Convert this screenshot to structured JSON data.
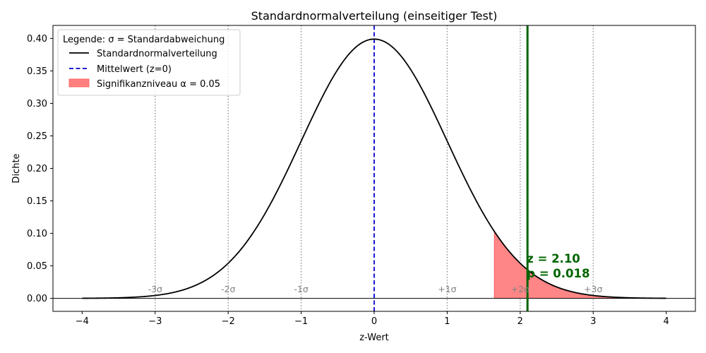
{
  "chart_data": {
    "type": "line",
    "title": "Standardnormalverteilung (einseitiger Test)",
    "xlabel": "z-Wert",
    "ylabel": "Dichte",
    "xlim": [
      -4.4,
      4.4
    ],
    "ylim": [
      -0.02,
      0.42
    ],
    "x_ticks": [
      -4,
      -3,
      -2,
      -1,
      0,
      1,
      2,
      3,
      4
    ],
    "x_tick_labels": [
      "−4",
      "−3",
      "−2",
      "−1",
      "0",
      "1",
      "2",
      "3",
      "4"
    ],
    "y_ticks": [
      0.0,
      0.05,
      0.1,
      0.15,
      0.2,
      0.25,
      0.3,
      0.35,
      0.4
    ],
    "y_tick_labels": [
      "0.00",
      "0.05",
      "0.10",
      "0.15",
      "0.20",
      "0.25",
      "0.30",
      "0.35",
      "0.40"
    ],
    "grid": false,
    "curve": {
      "name": "Standardnormalverteilung",
      "x_range": [
        -4,
        4
      ],
      "mean": 0,
      "sd": 1,
      "color": "#000000"
    },
    "mean_line": {
      "name": "Mittelwert (z=0)",
      "x": 0,
      "color": "#0000cc"
    },
    "rejection_region": {
      "name": "Signifikanzniveau α = 0.05",
      "x_start": 1.645,
      "x_end": 4,
      "color": "#ff7f7f"
    },
    "test_statistic": {
      "x": 2.1,
      "color": "#006400",
      "label_line1": "z = 2.10",
      "label_line2": "p = 0.018"
    },
    "sigma_lines": [
      {
        "x": -3,
        "label": "-3σ"
      },
      {
        "x": -2,
        "label": "-2σ"
      },
      {
        "x": -1,
        "label": "-1σ"
      },
      {
        "x": 1,
        "label": "+1σ"
      },
      {
        "x": 2,
        "label": "+2σ"
      },
      {
        "x": 3,
        "label": "+3σ"
      }
    ],
    "sigma_line_color": "#808080",
    "legend": {
      "title": "Legende: σ = Standardabweichung",
      "position": "top-left",
      "entries": [
        "Standardnormalverteilung",
        "Mittelwert (z=0)",
        "Signifikanzniveau α = 0.05"
      ]
    }
  }
}
